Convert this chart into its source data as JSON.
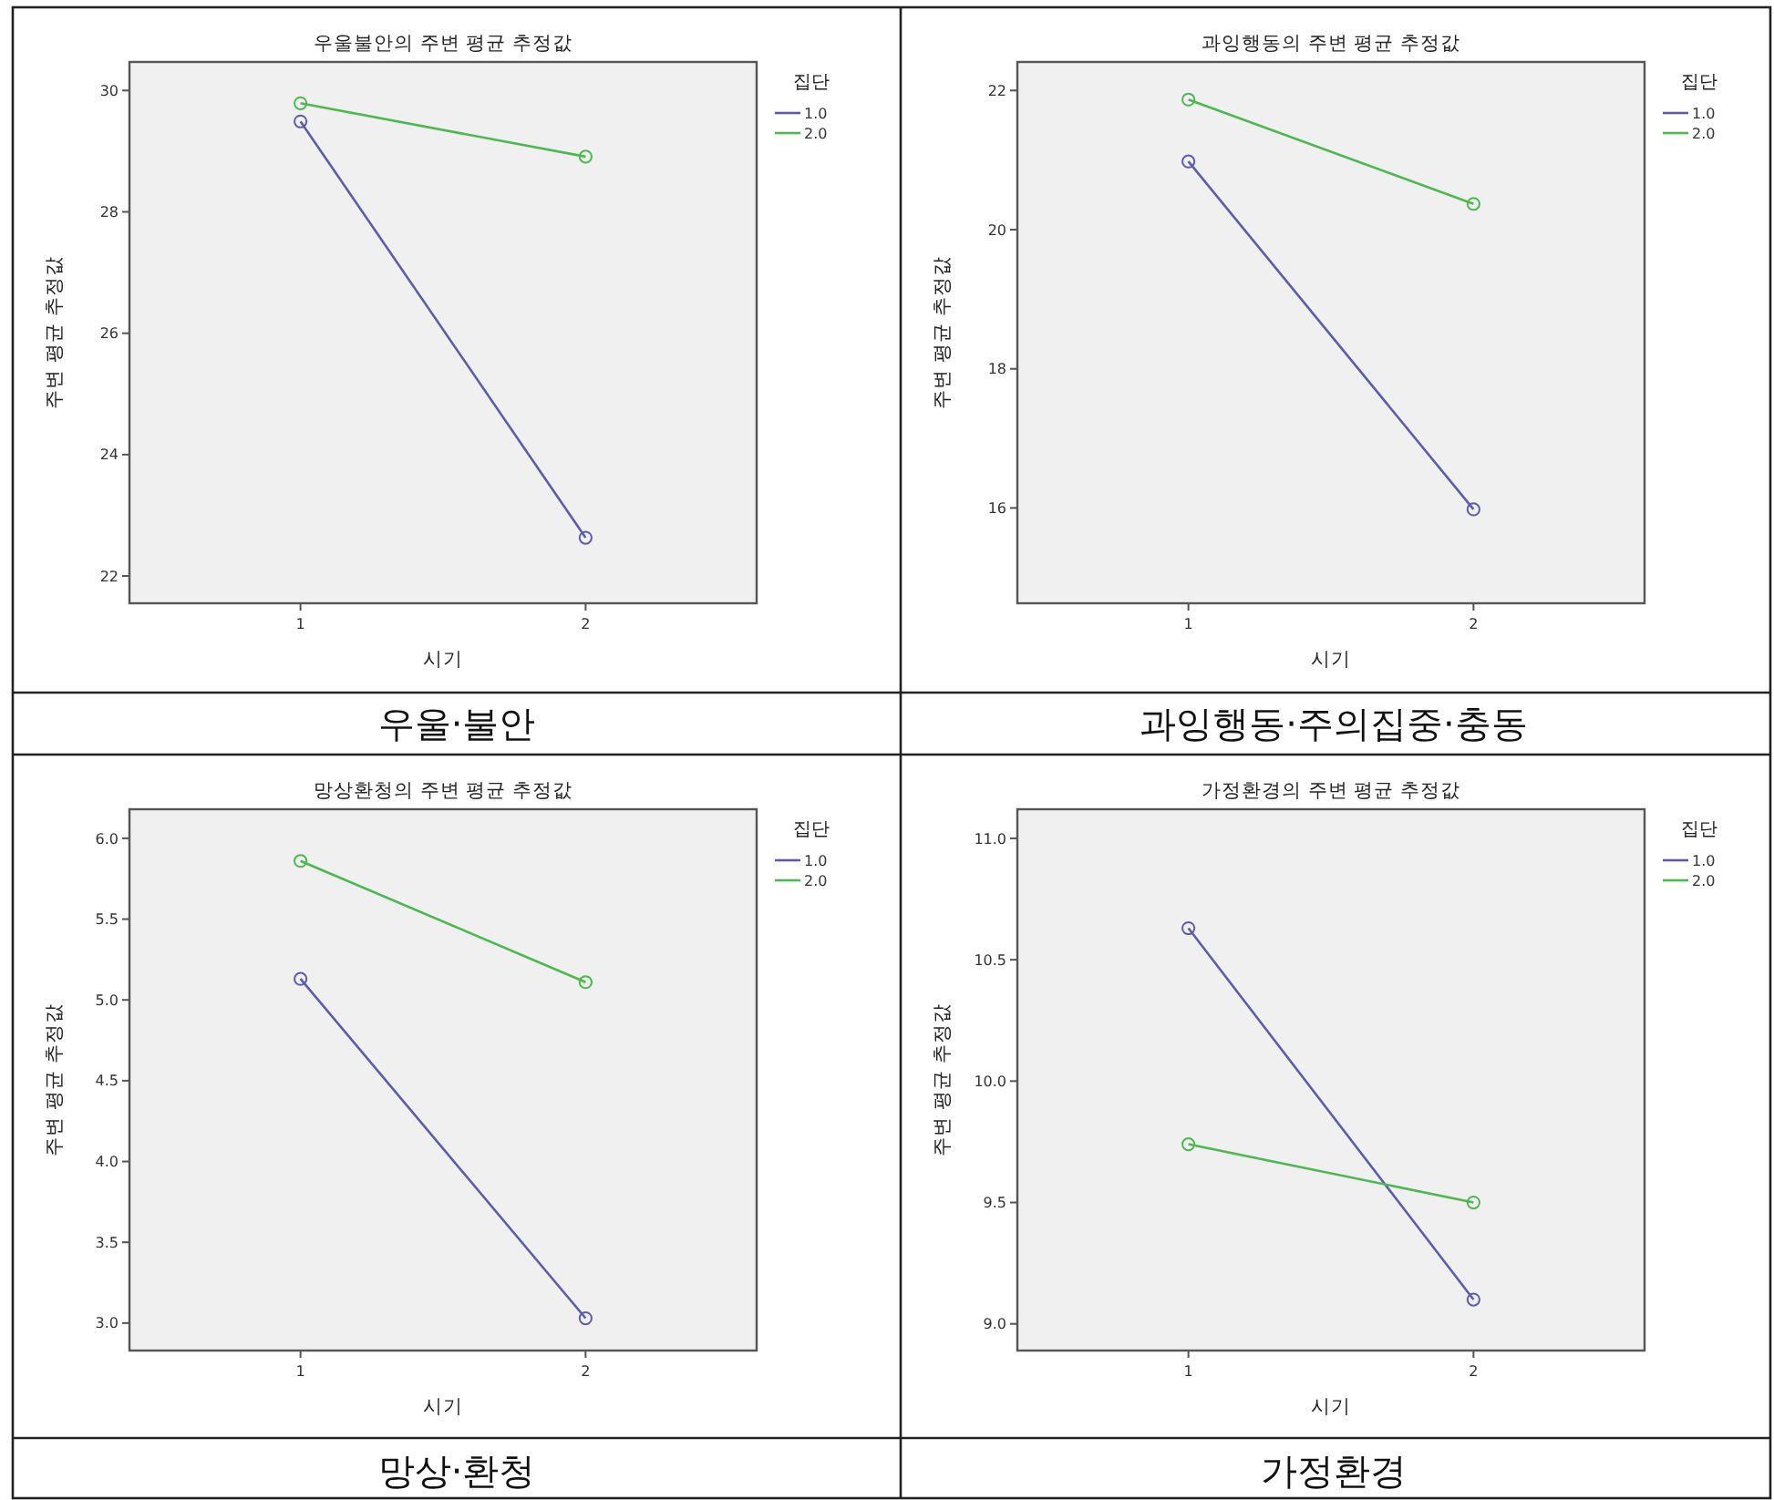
{
  "chart_data": [
    {
      "type": "line",
      "title": "우울불안의 주변 평균 추정값",
      "xlabel": "시기",
      "ylabel": "주변 평균 추정값",
      "legend_title": "집단",
      "legend": "top right",
      "marker": "circle",
      "line_style": "solid",
      "grid": false,
      "categories": [
        "1",
        "2"
      ],
      "ylim": [
        21.55,
        30.47
      ],
      "yticks": [
        22,
        24,
        26,
        28,
        30
      ],
      "series": [
        {
          "name": "1.0",
          "color": "#5c5ca8",
          "values": [
            29.49,
            22.63
          ]
        },
        {
          "name": "2.0",
          "color": "#4db84f",
          "values": [
            29.79,
            28.91
          ]
        }
      ],
      "annotations": [
        "우울·불안"
      ]
    },
    {
      "type": "line",
      "title": "과잉행동의 주변 평균 추정값",
      "xlabel": "시기",
      "ylabel": "주변 평균 추정값",
      "legend_title": "집단",
      "legend": "top right",
      "marker": "circle",
      "line_style": "solid",
      "grid": false,
      "categories": [
        "1",
        "2"
      ],
      "ylim": [
        14.63,
        22.41
      ],
      "yticks": [
        16,
        18,
        20,
        22
      ],
      "series": [
        {
          "name": "1.0",
          "color": "#5c5ca8",
          "values": [
            20.98,
            15.98
          ]
        },
        {
          "name": "2.0",
          "color": "#4db84f",
          "values": [
            21.87,
            20.37
          ]
        }
      ],
      "annotations": [
        "과잉행동·주의집중·충동"
      ]
    },
    {
      "type": "line",
      "title": "망상환청의 주변 평균 추정값",
      "xlabel": "시기",
      "ylabel": "주변 평균 추정값",
      "legend_title": "집단",
      "legend": "top right",
      "marker": "circle",
      "line_style": "solid",
      "grid": false,
      "categories": [
        "1",
        "2"
      ],
      "ylim": [
        2.83,
        6.18
      ],
      "yticks": [
        {
          "value": 3,
          "label": "3.0"
        },
        3.5,
        {
          "value": 4,
          "label": "4.0"
        },
        4.5,
        {
          "value": 5,
          "label": "5.0"
        },
        5.5,
        {
          "value": 6,
          "label": "6.0"
        }
      ],
      "series": [
        {
          "name": "1.0",
          "color": "#5c5ca8",
          "values": [
            5.13,
            3.03
          ]
        },
        {
          "name": "2.0",
          "color": "#4db84f",
          "values": [
            5.86,
            5.11
          ]
        }
      ],
      "annotations": [
        "망상·환청"
      ]
    },
    {
      "type": "line",
      "title": "가정환경의 주변 평균 추정값",
      "xlabel": "시기",
      "ylabel": "주변 평균 추정값",
      "legend_title": "집단",
      "legend": "top right",
      "marker": "circle",
      "line_style": "solid",
      "grid": false,
      "categories": [
        "1",
        "2"
      ],
      "ylim": [
        8.89,
        11.12
      ],
      "yticks": [
        {
          "value": 9,
          "label": "9.0"
        },
        9.5,
        {
          "value": 10,
          "label": "10.0"
        },
        10.5,
        {
          "value": 11,
          "label": "11.0"
        }
      ],
      "series": [
        {
          "name": "1.0",
          "color": "#5c5ca8",
          "values": [
            10.63,
            9.1
          ]
        },
        {
          "name": "2.0",
          "color": "#4db84f",
          "values": [
            9.74,
            9.5
          ]
        }
      ],
      "annotations": [
        "가정환경"
      ]
    }
  ]
}
